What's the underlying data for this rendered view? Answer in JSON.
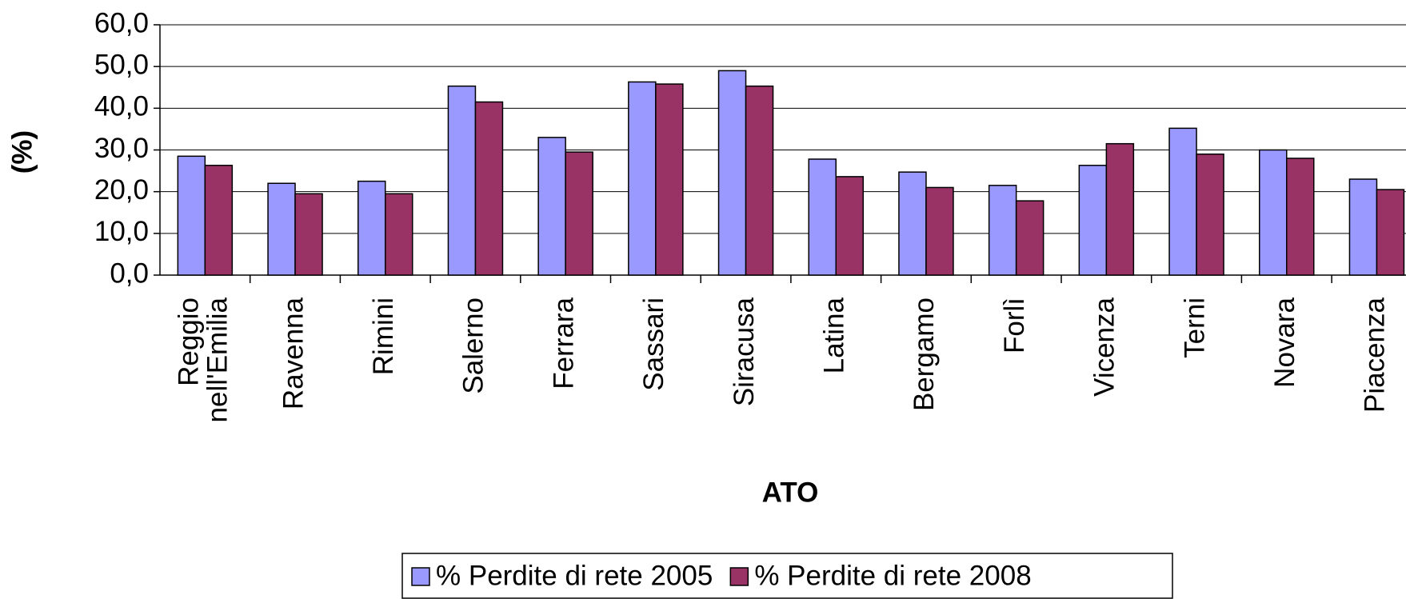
{
  "chart_data": {
    "type": "bar",
    "y_label": "(%)",
    "x_label": "ATO",
    "categories": [
      "Reggio nell'Emilia",
      "Ravenna",
      "Rimini",
      "Salerno",
      "Ferrara",
      "Sassari",
      "Siracusa",
      "Latina",
      "Bergamo",
      "Forlì",
      "Vicenza",
      "Terni",
      "Novara",
      "Piacenza"
    ],
    "series": [
      {
        "name": "% Perdite di rete 2005",
        "color": "#9999ff",
        "values": [
          28.5,
          22.0,
          22.5,
          45.3,
          33.0,
          46.3,
          49.0,
          27.8,
          24.7,
          21.5,
          26.3,
          35.2,
          30.0,
          23.0
        ]
      },
      {
        "name": "% Perdite di rete 2008",
        "color": "#993366",
        "values": [
          26.3,
          19.5,
          19.5,
          41.5,
          29.5,
          45.8,
          45.3,
          23.6,
          21.0,
          17.8,
          31.5,
          29.0,
          28.0,
          20.5
        ]
      }
    ],
    "ylim": [
      0,
      60
    ],
    "yticks": [
      {
        "value": 0,
        "label": "0,0"
      },
      {
        "value": 10,
        "label": "10,0"
      },
      {
        "value": 20,
        "label": "20,0"
      },
      {
        "value": 30,
        "label": "30,0"
      },
      {
        "value": 40,
        "label": "40,0"
      },
      {
        "value": 50,
        "label": "50,0"
      },
      {
        "value": 60,
        "label": "60,0"
      }
    ],
    "grid": true
  }
}
